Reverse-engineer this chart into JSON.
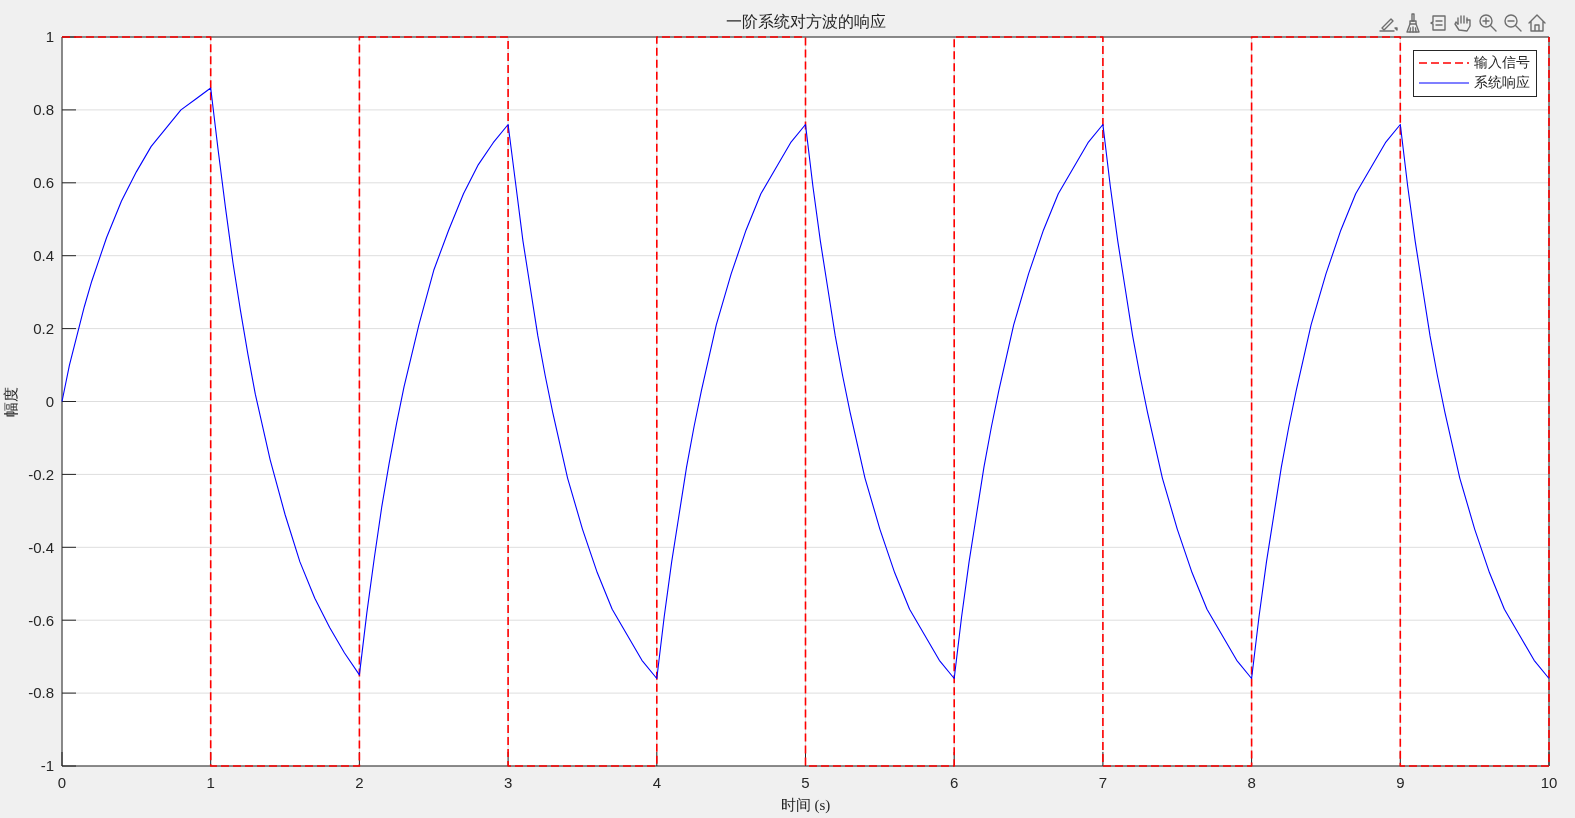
{
  "chart_data": {
    "type": "line",
    "title": "一阶系统对方波的响应",
    "xlabel": "时间 (s)",
    "ylabel": "幅度",
    "xlim": [
      0,
      10
    ],
    "ylim": [
      -1,
      1
    ],
    "xticks": [
      0,
      1,
      2,
      3,
      4,
      5,
      6,
      7,
      8,
      9,
      10
    ],
    "yticks": [
      -1,
      -0.8,
      -0.6,
      -0.4,
      -0.2,
      0,
      0.2,
      0.4,
      0.6,
      0.8,
      1
    ],
    "grid": true,
    "legend": "top right",
    "series": [
      {
        "name": "输入信号",
        "type": "step",
        "color": "#ff0000",
        "line_style": "dashed",
        "x": [
          0,
          1,
          2,
          3,
          4,
          5,
          6,
          7,
          8,
          9,
          10
        ],
        "values": [
          1,
          -1,
          1,
          -1,
          1,
          -1,
          1,
          -1,
          1,
          -1,
          1
        ]
      },
      {
        "name": "系统响应",
        "type": "line",
        "color": "#0000ff",
        "line_style": "solid",
        "x": [
          0,
          0.05,
          0.1,
          0.15,
          0.2,
          0.25,
          0.3,
          0.4,
          0.5,
          0.6,
          0.7,
          0.8,
          0.9,
          1,
          1.05,
          1.1,
          1.15,
          1.2,
          1.25,
          1.3,
          1.4,
          1.5,
          1.6,
          1.7,
          1.8,
          1.9,
          2,
          2.05,
          2.1,
          2.15,
          2.2,
          2.25,
          2.3,
          2.4,
          2.5,
          2.6,
          2.7,
          2.8,
          2.9,
          3,
          3.05,
          3.1,
          3.15,
          3.2,
          3.25,
          3.3,
          3.4,
          3.5,
          3.6,
          3.7,
          3.8,
          3.9,
          4,
          4.05,
          4.1,
          4.15,
          4.2,
          4.25,
          4.3,
          4.4,
          4.5,
          4.6,
          4.7,
          4.8,
          4.9,
          5,
          5.05,
          5.1,
          5.15,
          5.2,
          5.25,
          5.3,
          5.4,
          5.5,
          5.6,
          5.7,
          5.8,
          5.9,
          6,
          6.05,
          6.1,
          6.15,
          6.2,
          6.25,
          6.3,
          6.4,
          6.5,
          6.6,
          6.7,
          6.8,
          6.9,
          7,
          7.05,
          7.1,
          7.15,
          7.2,
          7.25,
          7.3,
          7.4,
          7.5,
          7.6,
          7.7,
          7.8,
          7.9,
          8,
          8.05,
          8.1,
          8.15,
          8.2,
          8.25,
          8.3,
          8.4,
          8.5,
          8.6,
          8.7,
          8.8,
          8.9,
          9,
          9.05,
          9.1,
          9.15,
          9.2,
          9.25,
          9.3,
          9.4,
          9.5,
          9.6,
          9.7,
          9.8,
          9.9,
          10
        ],
        "values": [
          0,
          0.1,
          0.18,
          0.26,
          0.33,
          0.39,
          0.45,
          0.55,
          0.63,
          0.7,
          0.75,
          0.8,
          0.83,
          0.86,
          0.69,
          0.53,
          0.38,
          0.25,
          0.13,
          0.02,
          -0.16,
          -0.31,
          -0.44,
          -0.54,
          -0.62,
          -0.69,
          -0.75,
          -0.58,
          -0.43,
          -0.29,
          -0.17,
          -0.06,
          0.04,
          0.21,
          0.36,
          0.47,
          0.57,
          0.65,
          0.71,
          0.76,
          0.6,
          0.44,
          0.31,
          0.18,
          0.07,
          -0.03,
          -0.21,
          -0.35,
          -0.47,
          -0.57,
          -0.64,
          -0.71,
          -0.76,
          -0.59,
          -0.44,
          -0.31,
          -0.18,
          -0.07,
          0.03,
          0.21,
          0.35,
          0.47,
          0.57,
          0.64,
          0.71,
          0.76,
          0.59,
          0.44,
          0.31,
          0.18,
          0.07,
          -0.03,
          -0.21,
          -0.35,
          -0.47,
          -0.57,
          -0.64,
          -0.71,
          -0.76,
          -0.59,
          -0.44,
          -0.31,
          -0.18,
          -0.07,
          0.03,
          0.21,
          0.35,
          0.47,
          0.57,
          0.64,
          0.71,
          0.76,
          0.59,
          0.44,
          0.31,
          0.18,
          0.07,
          -0.03,
          -0.21,
          -0.35,
          -0.47,
          -0.57,
          -0.64,
          -0.71,
          -0.76,
          -0.59,
          -0.44,
          -0.31,
          -0.18,
          -0.07,
          0.03,
          0.21,
          0.35,
          0.47,
          0.57,
          0.64,
          0.71,
          0.76,
          0.59,
          0.44,
          0.31,
          0.18,
          0.07,
          -0.03,
          -0.21,
          -0.35,
          -0.47,
          -0.57,
          -0.64,
          -0.71,
          -0.76
        ]
      }
    ]
  }
}
